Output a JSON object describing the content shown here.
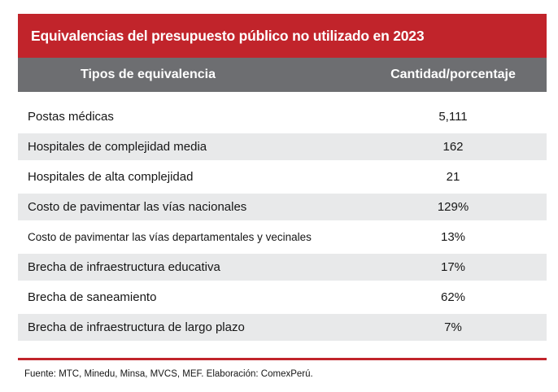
{
  "title": "Equivalencias del presupuesto público no utilizado en 2023",
  "table": {
    "columns": [
      "Tipos de equivalencia",
      "Cantidad/porcentaje"
    ],
    "rows": [
      {
        "label": "Postas médicas",
        "value": "5,111"
      },
      {
        "label": "Hospitales de complejidad media",
        "value": "162"
      },
      {
        "label": "Hospitales de alta complejidad",
        "value": "21"
      },
      {
        "label": "Costo de pavimentar las vías nacionales",
        "value": "129%"
      },
      {
        "label": "Costo de pavimentar las vías departamentales y vecinales",
        "value": "13%"
      },
      {
        "label": "Brecha de infraestructura educativa",
        "value": "17%"
      },
      {
        "label": "Brecha de saneamiento",
        "value": "62%"
      },
      {
        "label": "Brecha de infraestructura de largo plazo",
        "value": "7%"
      }
    ]
  },
  "footer": "Fuente: MTC, Minedu, Minsa, MVCS, MEF. Elaboración: ComexPerú.",
  "colors": {
    "accent_red": "#c1242b",
    "header_gray": "#6d6e71",
    "row_shade": "#e8e9ea",
    "text": "#161616",
    "header_text": "#ffffff"
  },
  "chart_data": {
    "type": "table",
    "title": "Equivalencias del presupuesto público no utilizado en 2023",
    "columns": [
      "Tipos de equivalencia",
      "Cantidad/porcentaje"
    ],
    "rows": [
      [
        "Postas médicas",
        "5,111"
      ],
      [
        "Hospitales de complejidad media",
        "162"
      ],
      [
        "Hospitales de alta complejidad",
        "21"
      ],
      [
        "Costo de pavimentar las vías nacionales",
        "129%"
      ],
      [
        "Costo de pavimentar las vías departamentales y vecinales",
        "13%"
      ],
      [
        "Brecha de infraestructura educativa",
        "17%"
      ],
      [
        "Brecha de saneamiento",
        "62%"
      ],
      [
        "Brecha de infraestructura de largo plazo",
        "7%"
      ]
    ],
    "source": "Fuente: MTC, Minedu, Minsa, MVCS, MEF. Elaboración: ComexPerú.",
    "layout": {
      "alternating_row_shading": true,
      "value_column_align": "center"
    }
  }
}
